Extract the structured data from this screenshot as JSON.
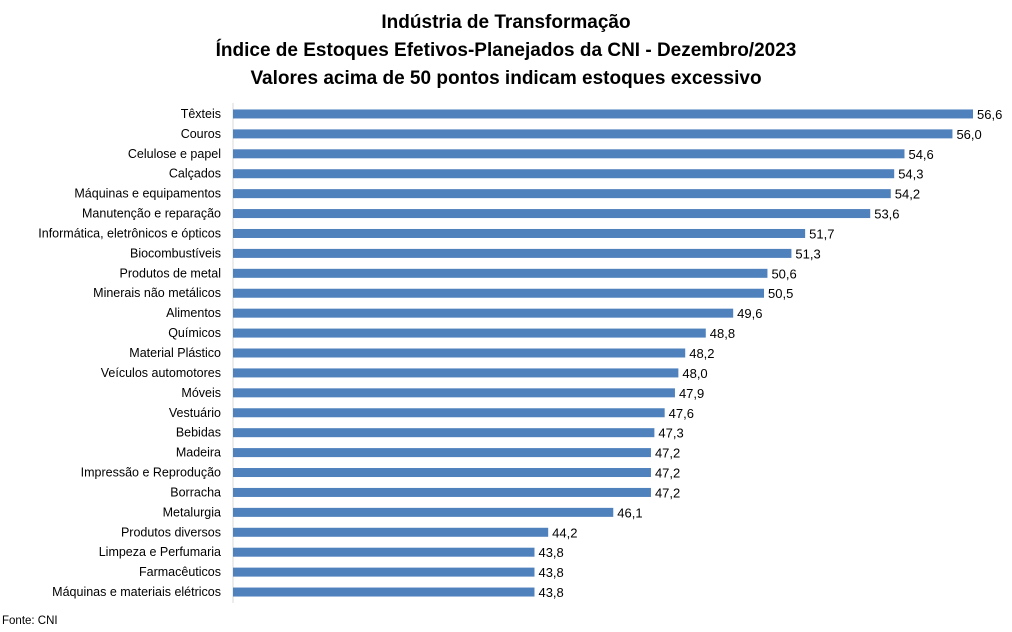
{
  "chart_data": {
    "type": "bar",
    "orientation": "horizontal",
    "title": [
      "Indústria de Transformação",
      "Índice de Estoques Efetivos-Planejados da CNI - Dezembro/2023",
      "Valores acima de 50 pontos indicam estoques excessivo"
    ],
    "categories": [
      "Têxteis",
      "Couros",
      "Celulose e papel",
      "Calçados",
      "Máquinas e equipamentos",
      "Manutenção e reparação",
      "Informática, eletrônicos e ópticos",
      "Biocombustíveis",
      "Produtos de metal",
      "Minerais não metálicos",
      "Alimentos",
      "Químicos",
      "Material Plástico",
      "Veículos automotores",
      "Móveis",
      "Vestuário",
      "Bebidas",
      "Madeira",
      "Impressão e Reprodução ",
      "Borracha",
      "Metalurgia",
      "Produtos diversos",
      "Limpeza e Perfumaria",
      "Farmacêuticos",
      "Máquinas e materiais elétricos"
    ],
    "values": [
      56.6,
      56.0,
      54.6,
      54.3,
      54.2,
      53.6,
      51.7,
      51.3,
      50.6,
      50.5,
      49.6,
      48.8,
      48.2,
      48.0,
      47.9,
      47.6,
      47.3,
      47.2,
      47.2,
      47.2,
      46.1,
      44.2,
      43.8,
      43.8,
      43.8
    ],
    "value_labels": [
      "56,6",
      "56,0",
      "54,6",
      "54,3",
      "54,2",
      "53,6",
      "51,7",
      "51,3",
      "50,6",
      "50,5",
      "49,6",
      "48,8",
      "48,2",
      "48,0",
      "47,9",
      "47,6",
      "47,3",
      "47,2",
      "47,2",
      "47,2",
      "46,1",
      "44,2",
      "43,8",
      "43,8",
      "43,8"
    ],
    "xlim": [
      35,
      58
    ],
    "grid": false,
    "legend": "none",
    "bar_color": "#4F81BD"
  },
  "source": "Fonte: CNI"
}
